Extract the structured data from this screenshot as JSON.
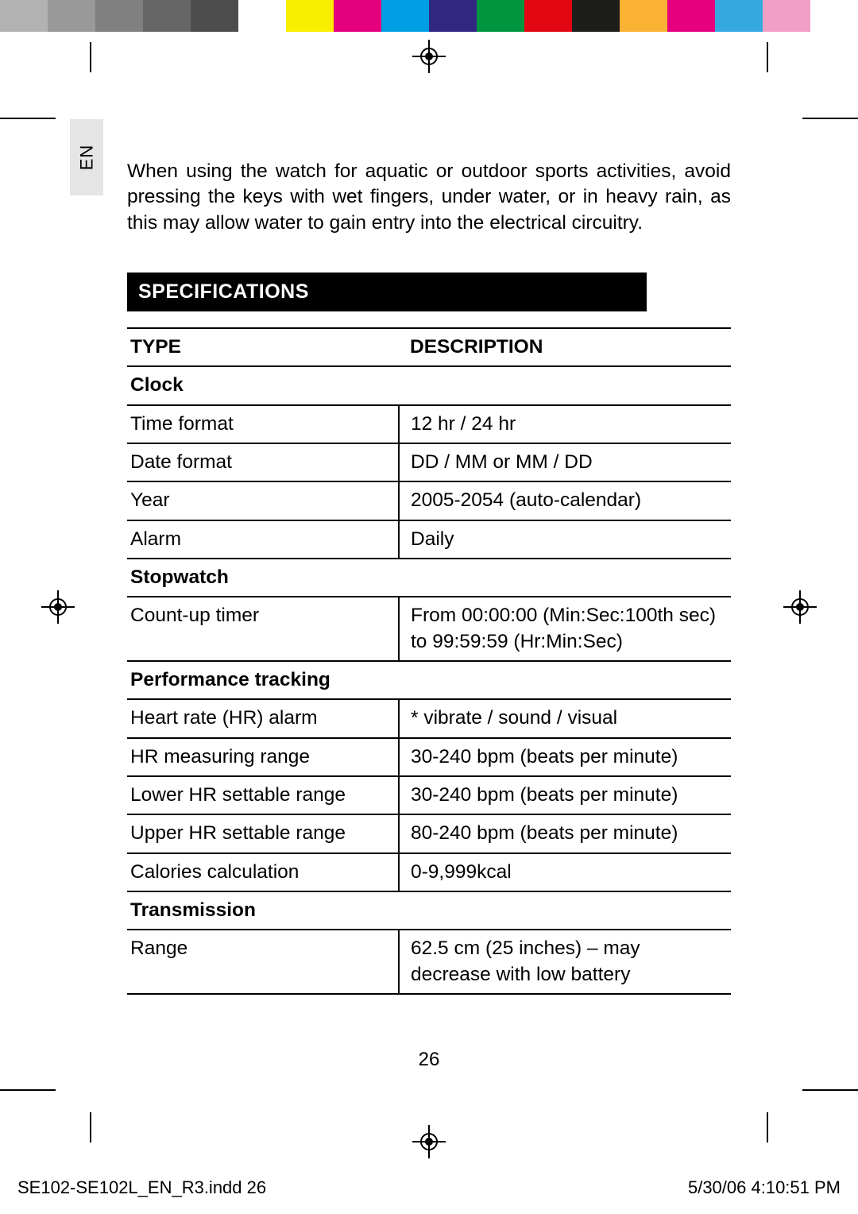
{
  "color_bar": [
    "#b2b2b2",
    "#999999",
    "#808080",
    "#666666",
    "#4d4d4d",
    "#ffffff",
    "#f9ed00",
    "#e5007e",
    "#009fe3",
    "#312783",
    "#009640",
    "#e30613",
    "#1d1d1b",
    "#f9b233",
    "#e6007e",
    "#36a9e1",
    "#f29fc5",
    "#ffffff"
  ],
  "lang_tab": "EN",
  "intro_text": "When using the watch for aquatic or outdoor sports activities, avoid pressing the keys with wet fingers, under water, or in heavy rain, as this may allow water to gain entry into the electrical circuitry.",
  "section_title": "SPECIFICATIONS",
  "table": {
    "header": {
      "type": "TYPE",
      "desc": "DESCRIPTION"
    },
    "groups": [
      {
        "name": "Clock",
        "rows": [
          {
            "type": "Time format",
            "desc": "12 hr / 24 hr"
          },
          {
            "type": "Date format",
            "desc": "DD / MM or MM / DD"
          },
          {
            "type": "Year",
            "desc": "2005-2054 (auto-calendar)"
          },
          {
            "type": "Alarm",
            "desc": "Daily"
          }
        ]
      },
      {
        "name": "Stopwatch",
        "rows": [
          {
            "type": "Count-up timer",
            "desc": "From 00:00:00 (Min:Sec:100th sec) to 99:59:59 (Hr:Min:Sec)"
          }
        ]
      },
      {
        "name": "Performance tracking",
        "rows": [
          {
            "type": "Heart rate (HR) alarm",
            "desc": "* vibrate / sound / visual"
          },
          {
            "type": "HR measuring range",
            "desc": "30-240 bpm (beats per minute)"
          },
          {
            "type": "Lower HR settable range",
            "desc": "30-240 bpm (beats per minute)"
          },
          {
            "type": "Upper HR settable range",
            "desc": "80-240 bpm (beats per minute)"
          },
          {
            "type": "Calories calculation",
            "desc": "0-9,999kcal"
          }
        ]
      },
      {
        "name": "Transmission",
        "rows": [
          {
            "type": "Range",
            "desc": "62.5 cm (25 inches) – may decrease with low battery"
          }
        ]
      }
    ]
  },
  "page_number": "26",
  "slug_left": "SE102-SE102L_EN_R3.indd   26",
  "slug_right": "5/30/06   4:10:51 PM"
}
